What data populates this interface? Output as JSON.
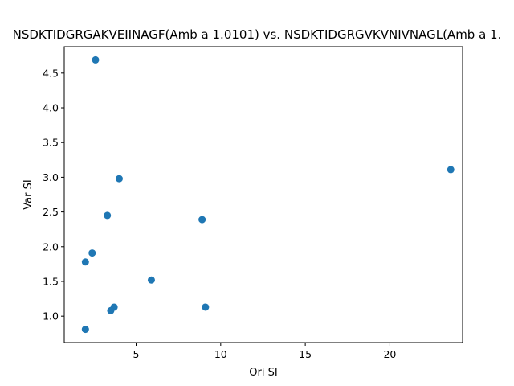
{
  "chart_data": {
    "type": "scatter",
    "title": "NSDKTIDGRGAKVEIINAGF(Amb a 1.0101) vs. NSDKTIDGRGVKVNIVNAGL(Amb a 1.",
    "xlabel": "Ori SI",
    "ylabel": "Var SI",
    "xlim": [
      0.75,
      24.3
    ],
    "ylim": [
      0.62,
      4.88
    ],
    "x_ticks": [
      5,
      10,
      15,
      20
    ],
    "y_ticks": [
      1.0,
      1.5,
      2.0,
      2.5,
      3.0,
      3.5,
      4.0,
      4.5
    ],
    "x_tick_labels": [
      "5",
      "10",
      "15",
      "20"
    ],
    "y_tick_labels": [
      "1.0",
      "1.5",
      "2.0",
      "2.5",
      "3.0",
      "3.5",
      "4.0",
      "4.5"
    ],
    "marker_color": "#1f77b4",
    "grid": false,
    "points": [
      {
        "x": 2.6,
        "y": 4.69
      },
      {
        "x": 4.0,
        "y": 2.98
      },
      {
        "x": 3.3,
        "y": 2.45
      },
      {
        "x": 2.4,
        "y": 1.91
      },
      {
        "x": 2.0,
        "y": 1.78
      },
      {
        "x": 5.9,
        "y": 1.52
      },
      {
        "x": 3.7,
        "y": 1.13
      },
      {
        "x": 3.5,
        "y": 1.08
      },
      {
        "x": 2.0,
        "y": 0.81
      },
      {
        "x": 8.9,
        "y": 2.39
      },
      {
        "x": 9.1,
        "y": 1.13
      },
      {
        "x": 23.6,
        "y": 3.11
      }
    ]
  }
}
